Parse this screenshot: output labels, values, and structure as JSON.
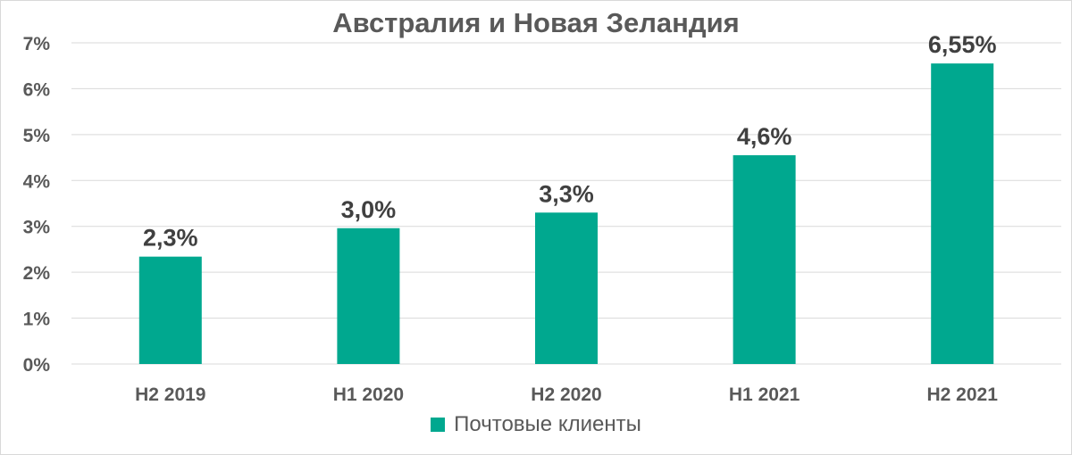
{
  "chart_data": {
    "type": "bar",
    "title": "Австралия и Новая Зеландия",
    "categories": [
      "H2 2019",
      "H1 2020",
      "H2 2020",
      "H1 2021",
      "H2 2021"
    ],
    "series": [
      {
        "name": "Почтовые клиенты",
        "values": [
          2.34,
          2.96,
          3.3,
          4.55,
          6.55
        ],
        "data_labels": [
          "2,3%",
          "3,0%",
          "3,3%",
          "4,6%",
          "6,55%"
        ],
        "color": "#00a88f"
      }
    ],
    "ylim": [
      0,
      7
    ],
    "yticks": [
      0,
      1,
      2,
      3,
      4,
      5,
      6,
      7
    ],
    "ytick_labels": [
      "0%",
      "1%",
      "2%",
      "3%",
      "4%",
      "5%",
      "6%",
      "7%"
    ],
    "grid": true,
    "legend_position": "bottom"
  },
  "colors": {
    "bar": "#00a88f",
    "grid": "#d9d9d9",
    "text": "#595959",
    "data_label": "#404040"
  }
}
